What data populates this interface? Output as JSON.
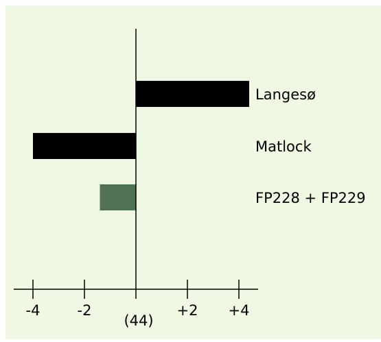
{
  "chart_data": {
    "type": "bar",
    "orientation": "horizontal",
    "categories": [
      "Langesø",
      "Matlock",
      "FP228 + FP229"
    ],
    "values": [
      4.4,
      -4.0,
      -1.4
    ],
    "bar_colors": [
      "#000000",
      "#000000",
      "#4f7352"
    ],
    "xlim": [
      -4.8,
      4.8
    ],
    "x_ticks": [
      -4,
      -2,
      0,
      2,
      4
    ],
    "x_tick_labels": [
      "-4",
      "-2",
      "",
      "+2",
      "+4"
    ],
    "baseline_label": "(44)",
    "title": "",
    "xlabel": "",
    "ylabel": "",
    "grid": false,
    "legend": "none"
  },
  "colors": {
    "background": "#eef8e2",
    "frame": "#ffffff",
    "ink": "#000000"
  }
}
